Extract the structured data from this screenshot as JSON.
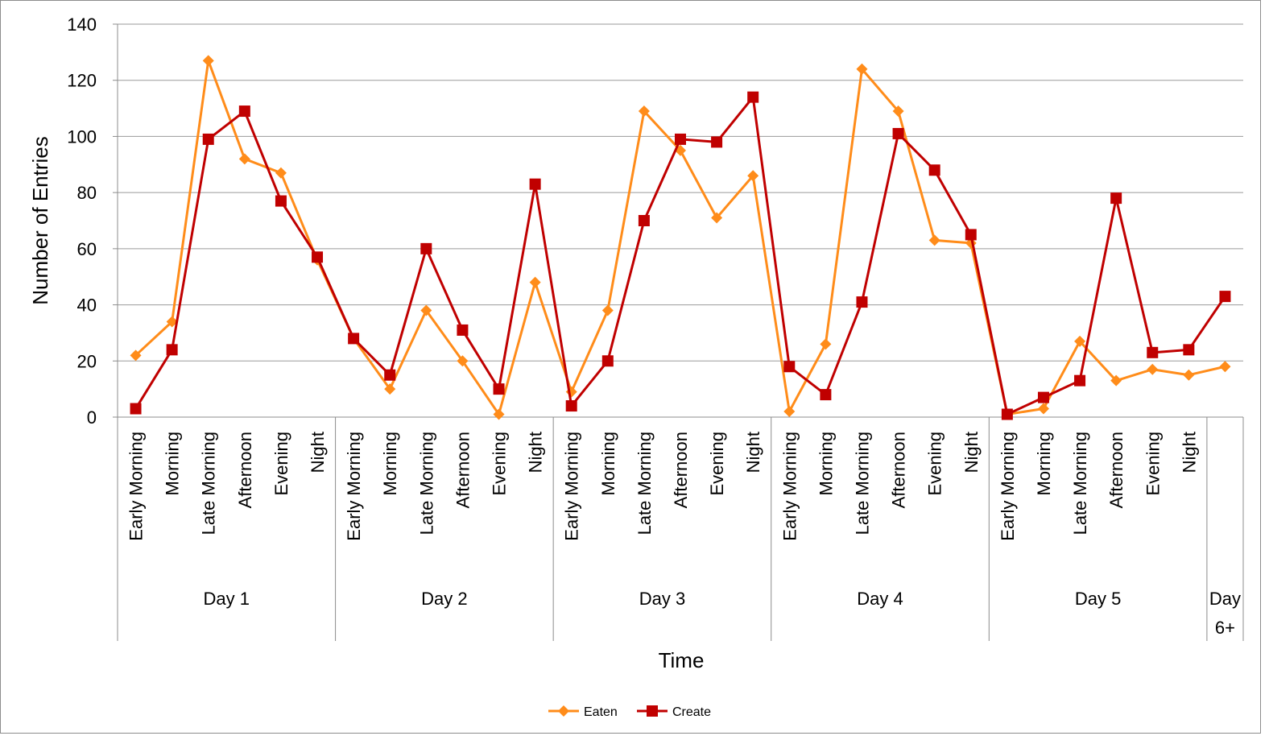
{
  "chart_data": {
    "type": "line",
    "xlabel": "Time",
    "ylabel": "Number of Entries",
    "ylim": [
      0,
      140
    ],
    "yticks": [
      0,
      20,
      40,
      60,
      80,
      100,
      120,
      140
    ],
    "grid": "horizontal",
    "legend": "bottom-center",
    "groups": [
      {
        "label": "Day 1",
        "categories": [
          "Early Morning",
          "Morning",
          "Late Morning",
          "Afternoon",
          "Evening",
          "Night"
        ]
      },
      {
        "label": "Day 2",
        "categories": [
          "Early Morning",
          "Morning",
          "Late Morning",
          "Afternoon",
          "Evening",
          "Night"
        ]
      },
      {
        "label": "Day 3",
        "categories": [
          "Early Morning",
          "Morning",
          "Late Morning",
          "Afternoon",
          "Evening",
          "Night"
        ]
      },
      {
        "label": "Day 4",
        "categories": [
          "Early Morning",
          "Morning",
          "Late Morning",
          "Afternoon",
          "Evening",
          "Night"
        ]
      },
      {
        "label": "Day 5",
        "categories": [
          "Early Morning",
          "Morning",
          "Late Morning",
          "Afternoon",
          "Evening",
          "Night"
        ]
      },
      {
        "label": "Day 6+",
        "categories": [
          ""
        ]
      }
    ],
    "series": [
      {
        "name": "Eaten",
        "color": "#ff8c1a",
        "marker": "diamond",
        "values": [
          22,
          34,
          127,
          92,
          87,
          56,
          28,
          10,
          38,
          20,
          1,
          48,
          9,
          38,
          109,
          95,
          71,
          86,
          2,
          26,
          124,
          109,
          63,
          62,
          1,
          3,
          27,
          13,
          17,
          15,
          18
        ]
      },
      {
        "name": "Create",
        "color": "#c00000",
        "marker": "square",
        "values": [
          3,
          24,
          99,
          109,
          77,
          57,
          28,
          15,
          60,
          31,
          10,
          83,
          4,
          20,
          70,
          99,
          98,
          114,
          18,
          8,
          41,
          101,
          88,
          65,
          1,
          7,
          13,
          78,
          23,
          24,
          43
        ]
      }
    ]
  }
}
